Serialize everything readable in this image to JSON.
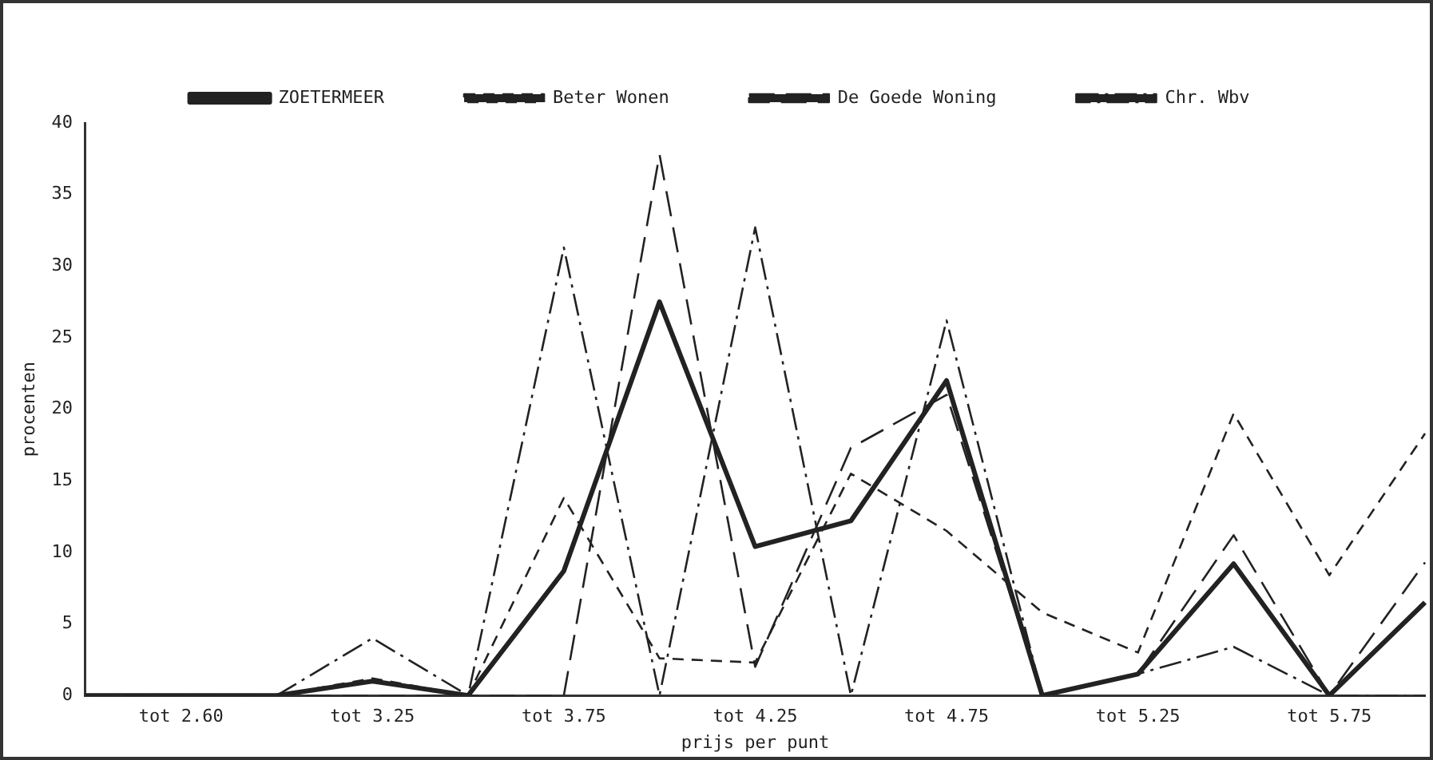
{
  "chart_data": {
    "type": "line",
    "xlabel": "prijs per punt",
    "ylabel": "procenten",
    "categories": [
      null,
      "tot 2.60",
      null,
      "tot 3.25",
      null,
      "tot 3.75",
      null,
      "tot 4.25",
      null,
      "tot 4.75",
      null,
      "tot 5.25",
      null,
      "tot 5.75",
      null
    ],
    "series": [
      {
        "name": "ZOETERMEER",
        "color": "#222222",
        "line_style": "solid",
        "values": [
          0,
          0,
          0,
          1,
          0,
          8.7,
          27.5,
          10.4,
          12.2,
          22,
          0,
          1.5,
          9.2,
          0,
          6.5
        ]
      },
      {
        "name": "Beter Wonen",
        "color": "#222222",
        "line_style": "dashed",
        "values": [
          0,
          0,
          0,
          1.2,
          0,
          13.8,
          2.6,
          2.3,
          15.5,
          11.5,
          5.8,
          3,
          19.7,
          8.4,
          18.3
        ]
      },
      {
        "name": "De Goede Woning",
        "color": "#222222",
        "line_style": "longdash",
        "values": [
          0,
          0,
          0,
          0,
          0,
          0,
          37.8,
          2,
          17.3,
          21,
          0,
          1.5,
          11.2,
          0,
          9.3
        ]
      },
      {
        "name": "Chr. Wbv",
        "color": "#222222",
        "line_style": "dashdot",
        "values": [
          0,
          0,
          0,
          4,
          0,
          31.3,
          0,
          32.7,
          0,
          26.2,
          0,
          1.5,
          3.4,
          0,
          0
        ]
      }
    ],
    "ylim": [
      0,
      40
    ],
    "yticks": [
      0,
      5,
      10,
      15,
      20,
      25,
      30,
      35,
      40
    ],
    "grid": false,
    "legend": "top",
    "marker": "none"
  }
}
